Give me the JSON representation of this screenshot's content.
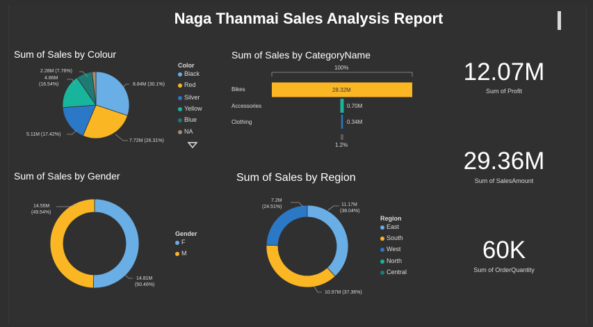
{
  "report": {
    "title": "Naga Thanmai Sales Analysis Report"
  },
  "colour_chart": {
    "title": "Sum of Sales by Colour",
    "legend_title": "Color",
    "legend": [
      "Black",
      "Red",
      "Silver",
      "Yellow",
      "Blue",
      "NA"
    ],
    "labels": [
      "8.84M (30.1%)",
      "7.72M (26.31%)",
      "5.11M (17.42%)",
      "4.86M",
      "(16.54%)",
      "2.28M (7.76%)"
    ]
  },
  "category_chart": {
    "title": "Sum of Sales by CategoryName",
    "top_label": "100%",
    "bottom_label": "1.2%",
    "categories": [
      "Bikes",
      "Accessories",
      "Clothing"
    ],
    "value_labels": [
      "28.32M",
      "0.70M",
      "0.34M"
    ]
  },
  "gender_chart": {
    "title": "Sum of Sales by Gender",
    "legend_title": "Gender",
    "legend": [
      "F",
      "M"
    ],
    "labels": [
      "14.55M",
      "(49.54%)",
      "14.81M",
      "(50.46%)"
    ]
  },
  "region_chart": {
    "title": "Sum of Sales by Region",
    "legend_title": "Region",
    "legend": [
      "East",
      "South",
      "West",
      "North",
      "Central"
    ],
    "labels": [
      "7.2M",
      "(24.51%)",
      "11.17M",
      "(38.04%)",
      "10.97M (37.36%)"
    ]
  },
  "kpis": [
    {
      "value": "12.07M",
      "label": "Sum of Profit"
    },
    {
      "value": "29.36M",
      "label": "Sum of SalesAmount"
    },
    {
      "value": "60K",
      "label": "Sum of OrderQuantity"
    }
  ],
  "colors": {
    "blue_light": "#6aaee6",
    "yellow": "#fbb623",
    "blue_dark": "#2a78c6",
    "teal": "#19b49c",
    "dark_teal": "#1f7a73",
    "tan": "#a48b6c"
  },
  "chart_data": [
    {
      "type": "pie",
      "title": "Sum of Sales by Colour",
      "categories": [
        "Black",
        "Red",
        "Silver",
        "Yellow",
        "Blue",
        "NA"
      ],
      "values": [
        8.84,
        7.72,
        5.11,
        4.86,
        2.28,
        0.55
      ],
      "unit": "M"
    },
    {
      "type": "bar",
      "title": "Sum of Sales by CategoryName",
      "categories": [
        "Bikes",
        "Accessories",
        "Clothing"
      ],
      "values": [
        28.32,
        0.7,
        0.34
      ],
      "unit": "M"
    },
    {
      "type": "pie",
      "title": "Sum of Sales by Gender",
      "categories": [
        "F",
        "M"
      ],
      "values": [
        14.81,
        14.55
      ],
      "unit": "M"
    },
    {
      "type": "pie",
      "title": "Sum of Sales by Region",
      "categories": [
        "East",
        "South",
        "West"
      ],
      "values": [
        11.17,
        10.97,
        7.2
      ],
      "unit": "M"
    }
  ]
}
